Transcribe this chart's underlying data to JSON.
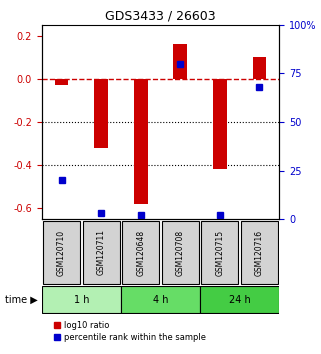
{
  "title": "GDS3433 / 26603",
  "samples": [
    "GSM120710",
    "GSM120711",
    "GSM120648",
    "GSM120708",
    "GSM120715",
    "GSM120716"
  ],
  "log10_ratio": [
    -0.03,
    -0.32,
    -0.58,
    0.16,
    -0.42,
    0.1
  ],
  "percentile_rank": [
    20,
    3,
    2,
    80,
    2,
    68
  ],
  "time_groups": [
    {
      "label": "1 h",
      "start": 0,
      "end": 2,
      "color": "#b3f0b3"
    },
    {
      "label": "4 h",
      "start": 2,
      "end": 4,
      "color": "#66dd66"
    },
    {
      "label": "24 h",
      "start": 4,
      "end": 6,
      "color": "#44cc44"
    }
  ],
  "bar_color": "#cc0000",
  "dot_color": "#0000cc",
  "left_axis_color": "#cc0000",
  "right_axis_color": "#0000cc",
  "ylim_left": [
    -0.65,
    0.25
  ],
  "yticks_left": [
    0.2,
    0.0,
    -0.2,
    -0.4,
    -0.6
  ],
  "yticks_right": [
    100,
    75,
    50,
    25,
    0
  ],
  "bar_width": 0.35,
  "background_color": "#ffffff",
  "plot_bg_color": "#ffffff",
  "grid_color": "#000000",
  "zero_line_color": "#cc0000"
}
